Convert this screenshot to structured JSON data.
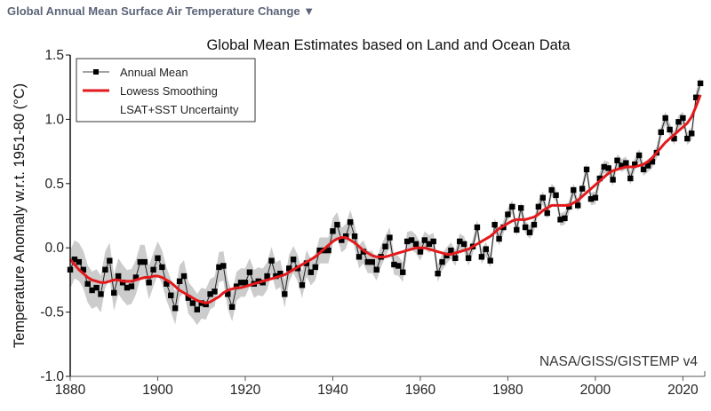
{
  "header": {
    "title": "Global Annual Mean Surface Air Temperature Change",
    "dropdown_icon": "▼"
  },
  "chart_data": {
    "type": "line",
    "title": "Global Mean Estimates based on Land and Ocean Data",
    "xlabel": "",
    "ylabel": "Temperature Anomaly w.r.t. 1951-80 (°C)",
    "xlim": [
      1880,
      2025
    ],
    "ylim": [
      -1.0,
      1.5
    ],
    "x_ticks": [
      "1880",
      "1900",
      "1920",
      "1940",
      "1960",
      "1980",
      "2000",
      "2020"
    ],
    "y_ticks": [
      "-1.0",
      "-0.5",
      "0.0",
      "0.5",
      "1.0",
      "1.5"
    ],
    "legend": {
      "placement": "top-left",
      "entries": [
        "Annual Mean",
        "Lowess Smoothing",
        "LSAT+SST Uncertainty"
      ]
    },
    "credit": "NASA/GISS/GISTEMP v4",
    "colors": {
      "annual": "#000000",
      "lowess": "#e31a1c",
      "uncertainty": "#cccccc"
    },
    "start_year": 1880,
    "series": [
      {
        "name": "Annual Mean",
        "values": [
          -0.17,
          -0.09,
          -0.11,
          -0.17,
          -0.28,
          -0.33,
          -0.31,
          -0.36,
          -0.17,
          -0.1,
          -0.35,
          -0.22,
          -0.27,
          -0.31,
          -0.3,
          -0.23,
          -0.11,
          -0.11,
          -0.27,
          -0.17,
          -0.08,
          -0.15,
          -0.28,
          -0.37,
          -0.47,
          -0.26,
          -0.22,
          -0.39,
          -0.43,
          -0.48,
          -0.43,
          -0.44,
          -0.36,
          -0.34,
          -0.15,
          -0.14,
          -0.36,
          -0.46,
          -0.3,
          -0.27,
          -0.27,
          -0.19,
          -0.28,
          -0.26,
          -0.27,
          -0.22,
          -0.1,
          -0.22,
          -0.2,
          -0.36,
          -0.16,
          -0.09,
          -0.16,
          -0.29,
          -0.12,
          -0.19,
          -0.15,
          -0.02,
          -0.02,
          -0.02,
          0.13,
          0.18,
          0.06,
          0.09,
          0.2,
          0.09,
          -0.07,
          -0.03,
          -0.11,
          -0.11,
          -0.17,
          -0.07,
          0.01,
          0.08,
          -0.13,
          -0.14,
          -0.19,
          0.05,
          0.06,
          0.03,
          -0.03,
          0.06,
          0.03,
          0.05,
          -0.2,
          -0.11,
          -0.06,
          -0.02,
          -0.08,
          0.05,
          0.03,
          -0.08,
          0.01,
          0.16,
          -0.07,
          -0.01,
          -0.1,
          0.18,
          0.07,
          0.16,
          0.26,
          0.32,
          0.14,
          0.31,
          0.16,
          0.12,
          0.18,
          0.32,
          0.39,
          0.27,
          0.45,
          0.41,
          0.22,
          0.23,
          0.32,
          0.45,
          0.33,
          0.46,
          0.61,
          0.38,
          0.39,
          0.54,
          0.63,
          0.62,
          0.53,
          0.68,
          0.64,
          0.66,
          0.54,
          0.65,
          0.72,
          0.61,
          0.64,
          0.67,
          0.74,
          0.9,
          1.01,
          0.92,
          0.85,
          0.98,
          1.01,
          0.85,
          0.89,
          1.17,
          1.28
        ]
      },
      {
        "name": "Lowess Smoothing",
        "values": [
          -0.09,
          -0.13,
          -0.17,
          -0.2,
          -0.23,
          -0.25,
          -0.26,
          -0.27,
          -0.27,
          -0.26,
          -0.25,
          -0.25,
          -0.26,
          -0.26,
          -0.26,
          -0.25,
          -0.24,
          -0.23,
          -0.23,
          -0.22,
          -0.22,
          -0.23,
          -0.25,
          -0.27,
          -0.3,
          -0.33,
          -0.35,
          -0.37,
          -0.39,
          -0.41,
          -0.42,
          -0.43,
          -0.42,
          -0.4,
          -0.38,
          -0.35,
          -0.33,
          -0.32,
          -0.31,
          -0.31,
          -0.3,
          -0.29,
          -0.28,
          -0.27,
          -0.26,
          -0.25,
          -0.24,
          -0.23,
          -0.22,
          -0.21,
          -0.19,
          -0.17,
          -0.15,
          -0.13,
          -0.11,
          -0.09,
          -0.07,
          -0.04,
          -0.01,
          0.02,
          0.05,
          0.07,
          0.08,
          0.08,
          0.06,
          0.04,
          0.01,
          -0.02,
          -0.04,
          -0.06,
          -0.07,
          -0.07,
          -0.07,
          -0.06,
          -0.05,
          -0.04,
          -0.03,
          -0.02,
          -0.01,
          0.0,
          0.0,
          0.0,
          -0.01,
          -0.02,
          -0.03,
          -0.04,
          -0.05,
          -0.05,
          -0.04,
          -0.03,
          -0.02,
          -0.01,
          0.01,
          0.03,
          0.05,
          0.07,
          0.09,
          0.12,
          0.15,
          0.17,
          0.19,
          0.21,
          0.22,
          0.22,
          0.22,
          0.23,
          0.24,
          0.26,
          0.29,
          0.31,
          0.33,
          0.33,
          0.33,
          0.33,
          0.33,
          0.35,
          0.37,
          0.4,
          0.43,
          0.46,
          0.49,
          0.52,
          0.55,
          0.58,
          0.6,
          0.61,
          0.62,
          0.63,
          0.63,
          0.63,
          0.64,
          0.65,
          0.67,
          0.7,
          0.74,
          0.78,
          0.82,
          0.85,
          0.88,
          0.91,
          0.94,
          0.97,
          1.02,
          1.1,
          1.19
        ]
      }
    ],
    "uncertainty_halfwidth": {
      "1880": 0.15,
      "1900": 0.13,
      "1920": 0.11,
      "1940": 0.1,
      "1960": 0.07,
      "1980": 0.05,
      "2000": 0.05,
      "2024": 0.05
    }
  }
}
